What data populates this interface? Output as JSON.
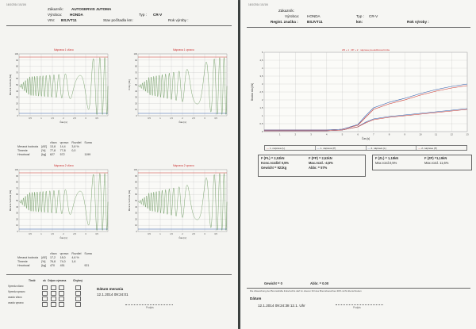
{
  "left": {
    "top_meta": "16/1/2014  1/1/1/6",
    "zakaznik_label": "Zákazník:",
    "zakaznik_value": "AUTOSERVIS JUTOMA",
    "vyrobca_label": "Výrobca:",
    "vyrobca_value": "HONDA",
    "typ_label": "Typ :",
    "typ_value": "CR-V",
    "vin_label": "VIN:",
    "vin_value": "BSJVT11",
    "stav_label": "Stav počítadla km:",
    "rok_label": "Rok výroby :",
    "charts": [
      {
        "title": "Náprava 1 vľavo",
        "ylabel": "Meraná hodnota [AE]",
        "xlabel": "Čas [s]"
      },
      {
        "title": "Náprava 1 vpravo",
        "ylabel": "Kmity [AE]",
        "xlabel": "Čas [s]"
      },
      {
        "title": "Náprava 2 vľavo",
        "ylabel": "Meraná hodnota [AE]",
        "xlabel": "Čas [s]"
      },
      {
        "title": "Náprava 2 vpravo",
        "ylabel": "Meraná hodnota [AE]",
        "xlabel": "Čas [s]"
      }
    ],
    "xticks": [
      "0,5",
      "1",
      "1,5",
      "2",
      "2,5",
      "3",
      "3,5"
    ],
    "yticks": [
      "100",
      "90",
      "80",
      "70",
      "60",
      "50",
      "40",
      "30",
      "20",
      "10",
      "0"
    ],
    "table1": {
      "head": [
        "",
        "",
        "vľavo",
        "vpravo",
        "Rozdiel",
        "Suma"
      ],
      "rows": [
        [
          "Meraná hodnota",
          "[AE]",
          "13,8",
          "14,4",
          "3,8 %",
          ""
        ],
        [
          "Tlmenie",
          "[%]",
          "77,8",
          "77,8",
          "0,0",
          ""
        ],
        [
          "Hmotnosť",
          "[kg]",
          "627",
          "572",
          "",
          "1199"
        ]
      ]
    },
    "table2": {
      "head": [
        "",
        "",
        "vľavo",
        "vpravo",
        "Rozdiel",
        "Suma"
      ],
      "rows": [
        [
          "Meraná hodnota",
          "[AE]",
          "17,2",
          "18,0",
          "4,6 %",
          ""
        ],
        [
          "Tlmenie",
          "[%]",
          "76,8",
          "74,0",
          "1,6",
          ""
        ],
        [
          "Hmotnosť",
          "[kg]",
          "470",
          "451",
          "",
          "921"
        ]
      ]
    },
    "footer": {
      "tlmic": "Tlmič",
      "ok": "ok",
      "odpor": "Odpor.",
      "vymena": "výmena",
      "chybny": "Chybný",
      "rows": [
        "Vpredu vľavo",
        "Vpredu vpravo",
        "vzadu vľavo",
        "vzadu vpravo"
      ],
      "datum_label": "Dátum merania",
      "datum_value": "12.1.2014 09:24:01",
      "podpis": "Podpis"
    }
  },
  "right": {
    "top_meta": "16/1/2014  1/1/1/6",
    "zakaznik_label": "Zákazník:",
    "vyrobca_label": "Výrobca:",
    "vyrobca_value": "HONDA",
    "typ_label": "Typ :",
    "typ_value": "CR-V",
    "regist_label": "Regist. značka :",
    "regist_value": "BSJVT11",
    "km_label": "km:",
    "rok_label": "Rok výroby :",
    "chart_title": "ZR + 1 ; ZP + 2 ; náprava prevádzková brzda",
    "ylabel": "Brzdná sila [kN]",
    "xlabel": "Čas [s]",
    "yticks": [
      "5",
      "4,5",
      "4",
      "3,5",
      "3",
      "2,5",
      "2",
      "1,5",
      "1",
      "0,5",
      "0"
    ],
    "xticks": [
      "1",
      "2",
      "3",
      "4",
      "5",
      "6",
      "7",
      "8",
      "9",
      "10",
      "11",
      "12",
      "13"
    ],
    "legend": [
      "1. náprava (L)",
      "1. náprava (P)",
      "2. náprava (L)",
      "2. náprava (P)"
    ],
    "results": {
      "fpl": "F (PL) = 2,53kN",
      "fpp": "F (PP) = 2,53kN",
      "fzl": "F (ZL) = 1,18kN",
      "fzp": "F (ZP) =1,19kN",
      "konc": "Konc.rozdiel 0,5%",
      "max1": "Max.rozd. -4,5%",
      "max2": "Max.rozd.0,5%",
      "max3": "Max.rozd. 11,6%",
      "gewicht": "Gewicht = 921kg",
      "abbr": "Abbr. = 57%"
    },
    "gewicht_bottom": "Gewicht = 0",
    "abbr_bottom": "Abbr. = 0.00",
    "note": "Die Abweichung der Bremskräfte links/rechts darf im oberen 3/3 des Bremsbereiches 30% nicht überschreiten",
    "datum_label": "Dátum",
    "datum_value": "12.1.2014 09:24:38  12.1. Uhr",
    "podpis": "Podpis"
  },
  "colors": {
    "osc": "#3c7a2c",
    "red": "#c8342e",
    "blue": "#2a56a8",
    "grid": "#b9b9b9"
  },
  "chart_data": [
    {
      "type": "line",
      "title": "Náprava 1 vľavo",
      "xlabel": "Čas [s]",
      "ylabel": "Meraná hodnota [AE]",
      "ylim": [
        0,
        100
      ],
      "xlim": [
        0,
        4
      ],
      "series": [
        {
          "values": []
        }
      ]
    },
    {
      "type": "line",
      "title": "Náprava 1 vpravo",
      "xlabel": "Čas [s]",
      "ylabel": "Kmity [AE]",
      "ylim": [
        0,
        100
      ],
      "xlim": [
        0,
        4
      ],
      "series": [
        {
          "values": []
        }
      ]
    },
    {
      "type": "line",
      "title": "Náprava 2 vľavo",
      "xlabel": "Čas [s]",
      "ylabel": "Meraná hodnota [AE]",
      "ylim": [
        0,
        100
      ],
      "xlim": [
        0,
        4
      ],
      "series": [
        {
          "values": []
        }
      ]
    },
    {
      "type": "line",
      "title": "Náprava 2 vpravo",
      "xlabel": "Čas [s]",
      "ylabel": "Meraná hodnota [AE]",
      "ylim": [
        0,
        100
      ],
      "xlim": [
        0,
        4
      ],
      "series": [
        {
          "values": []
        }
      ]
    },
    {
      "type": "line",
      "title": "ZR + 1 ; ZP + 2 ; náprava prevádzková brzda",
      "xlabel": "Čas [s]",
      "ylabel": "Brzdná sila [kN]",
      "xlim": [
        0,
        13
      ],
      "ylim": [
        0,
        5
      ],
      "x": [
        0,
        1,
        2,
        3,
        4,
        5,
        6,
        6.5,
        7,
        8,
        9,
        10,
        11,
        12,
        13
      ],
      "series": [
        {
          "name": "1. náprava (L)",
          "values": [
            0.1,
            0.1,
            0.1,
            0.1,
            0.1,
            0.15,
            0.4,
            0.9,
            1.4,
            1.75,
            2.0,
            2.3,
            2.55,
            2.75,
            2.9
          ]
        },
        {
          "name": "1. náprava (P)",
          "values": [
            0.1,
            0.1,
            0.1,
            0.1,
            0.1,
            0.15,
            0.45,
            1.0,
            1.5,
            1.85,
            2.1,
            2.4,
            2.65,
            2.85,
            3.0
          ]
        },
        {
          "name": "2. náprava (L)",
          "values": [
            0.05,
            0.05,
            0.05,
            0.05,
            0.05,
            0.1,
            0.3,
            0.6,
            0.8,
            0.95,
            1.05,
            1.15,
            1.25,
            1.35,
            1.45
          ]
        },
        {
          "name": "2. náprava (P)",
          "values": [
            0.05,
            0.05,
            0.05,
            0.05,
            0.05,
            0.1,
            0.3,
            0.55,
            0.75,
            0.9,
            1.0,
            1.1,
            1.2,
            1.3,
            1.4
          ]
        }
      ]
    }
  ]
}
